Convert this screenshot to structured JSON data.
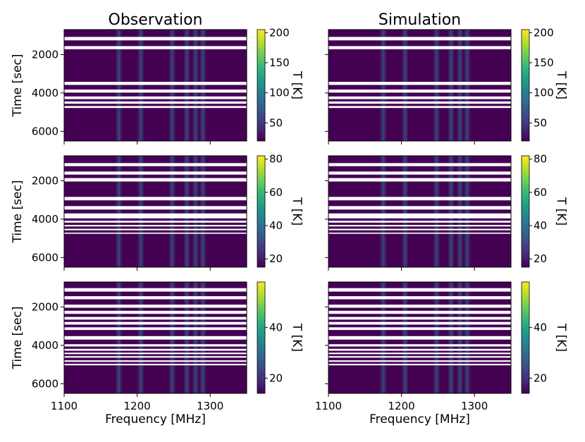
{
  "chart_data": {
    "type": "heatmap",
    "columns": [
      "Observation",
      "Simulation"
    ],
    "xlabel": "Frequency [MHz]",
    "ylabel": "Time [sec]",
    "colorbar_label": "T [K]",
    "colormap": "viridis",
    "x_range": [
      1100,
      1350
    ],
    "x_ticks": [
      1100,
      1200,
      1300
    ],
    "y_range": [
      6500,
      700
    ],
    "y_ticks": [
      2000,
      4000,
      6000
    ],
    "bright_freq_bands_mhz": [
      1175,
      1205,
      1248,
      1268,
      1280,
      1290
    ],
    "rows": [
      {
        "cbar_range": [
          20,
          205
        ],
        "cbar_ticks": [
          50,
          100,
          150,
          200
        ],
        "gaps_sec": [
          [
            1080,
            1260
          ],
          [
            1560,
            1720
          ],
          [
            3420,
            3580
          ],
          [
            3820,
            3980
          ],
          [
            4180,
            4320
          ],
          [
            4440,
            4560
          ],
          [
            4680,
            4780
          ]
        ]
      },
      {
        "cbar_range": [
          15,
          82
        ],
        "cbar_ticks": [
          20,
          40,
          60,
          80
        ],
        "gaps_sec": [
          [
            1080,
            1240
          ],
          [
            1520,
            1680
          ],
          [
            1860,
            2040
          ],
          [
            2840,
            3020
          ],
          [
            3320,
            3500
          ],
          [
            3700,
            3960
          ],
          [
            4080,
            4180
          ],
          [
            4300,
            4380
          ],
          [
            4500,
            4580
          ],
          [
            4700,
            4760
          ]
        ]
      },
      {
        "cbar_range": [
          14,
          58
        ],
        "cbar_ticks": [
          20,
          40
        ],
        "gaps_sec": [
          [
            1020,
            1200
          ],
          [
            1440,
            1600
          ],
          [
            1880,
            2040
          ],
          [
            2200,
            2360
          ],
          [
            2520,
            2660
          ],
          [
            2780,
            2920
          ],
          [
            3060,
            3200
          ],
          [
            3520,
            3700
          ],
          [
            3940,
            4060
          ],
          [
            4180,
            4280
          ],
          [
            4380,
            4460
          ],
          [
            4560,
            4640
          ],
          [
            4780,
            4860
          ],
          [
            4960,
            5040
          ]
        ]
      }
    ]
  }
}
